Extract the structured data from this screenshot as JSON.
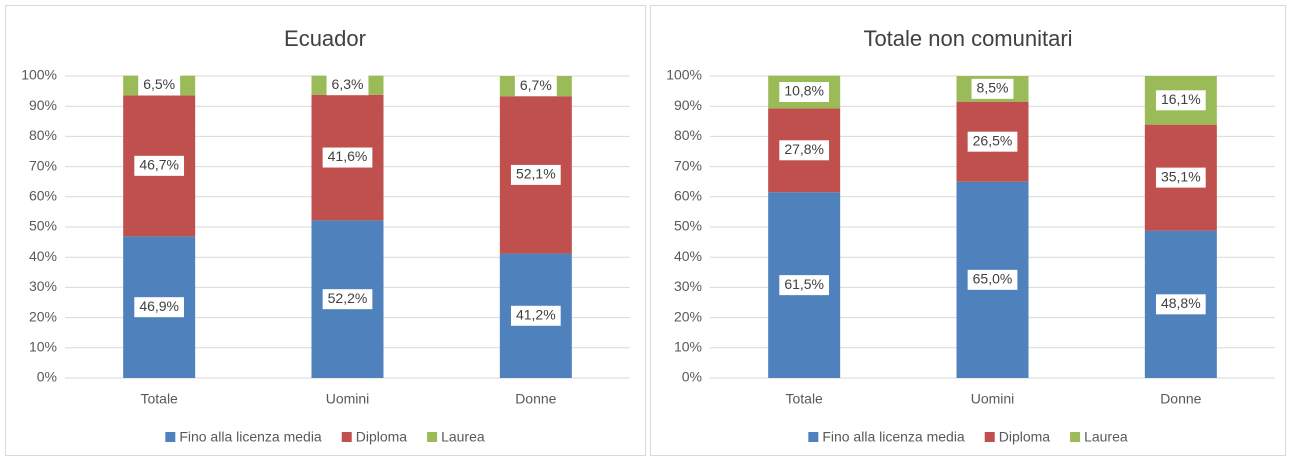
{
  "chart_data": [
    {
      "type": "bar",
      "stacked": true,
      "title": "Ecuador",
      "categories": [
        "Totale",
        "Uomini",
        "Donne"
      ],
      "series": [
        {
          "name": "Fino alla licenza media",
          "color": "#4f81bd",
          "values": [
            46.9,
            52.2,
            41.2
          ],
          "value_labels": [
            "46,9%",
            "52,2%",
            "41,2%"
          ]
        },
        {
          "name": "Diploma",
          "color": "#c0504d",
          "values": [
            46.7,
            41.6,
            52.1
          ],
          "value_labels": [
            "46,7%",
            "41,6%",
            "52,1%"
          ]
        },
        {
          "name": "Laurea",
          "color": "#9bbb59",
          "values": [
            6.5,
            6.3,
            6.7
          ],
          "value_labels": [
            "6,5%",
            "6,3%",
            "6,7%"
          ]
        }
      ],
      "ylim": [
        0,
        100
      ],
      "yticks": [
        {
          "value": 0,
          "label": "0%"
        },
        {
          "value": 10,
          "label": "10%"
        },
        {
          "value": 20,
          "label": "20%"
        },
        {
          "value": 30,
          "label": "30%"
        },
        {
          "value": 40,
          "label": "40%"
        },
        {
          "value": 50,
          "label": "50%"
        },
        {
          "value": 60,
          "label": "60%"
        },
        {
          "value": 70,
          "label": "70%"
        },
        {
          "value": 80,
          "label": "80%"
        },
        {
          "value": 90,
          "label": "90%"
        },
        {
          "value": 100,
          "label": "100%"
        }
      ],
      "grid": true,
      "legend": "bottom"
    },
    {
      "type": "bar",
      "stacked": true,
      "title": "Totale non comunitari",
      "categories": [
        "Totale",
        "Uomini",
        "Donne"
      ],
      "series": [
        {
          "name": "Fino alla licenza media",
          "color": "#4f81bd",
          "values": [
            61.5,
            65.0,
            48.8
          ],
          "value_labels": [
            "61,5%",
            "65,0%",
            "48,8%"
          ]
        },
        {
          "name": "Diploma",
          "color": "#c0504d",
          "values": [
            27.8,
            26.5,
            35.1
          ],
          "value_labels": [
            "27,8%",
            "26,5%",
            "35,1%"
          ]
        },
        {
          "name": "Laurea",
          "color": "#9bbb59",
          "values": [
            10.8,
            8.5,
            16.1
          ],
          "value_labels": [
            "10,8%",
            "8,5%",
            "16,1%"
          ]
        }
      ],
      "ylim": [
        0,
        100
      ],
      "yticks": [
        {
          "value": 0,
          "label": "0%"
        },
        {
          "value": 10,
          "label": "10%"
        },
        {
          "value": 20,
          "label": "20%"
        },
        {
          "value": 30,
          "label": "30%"
        },
        {
          "value": 40,
          "label": "40%"
        },
        {
          "value": 50,
          "label": "50%"
        },
        {
          "value": 60,
          "label": "60%"
        },
        {
          "value": 70,
          "label": "70%"
        },
        {
          "value": 80,
          "label": "80%"
        },
        {
          "value": 90,
          "label": "90%"
        },
        {
          "value": 100,
          "label": "100%"
        }
      ],
      "grid": true,
      "legend": "bottom"
    }
  ]
}
